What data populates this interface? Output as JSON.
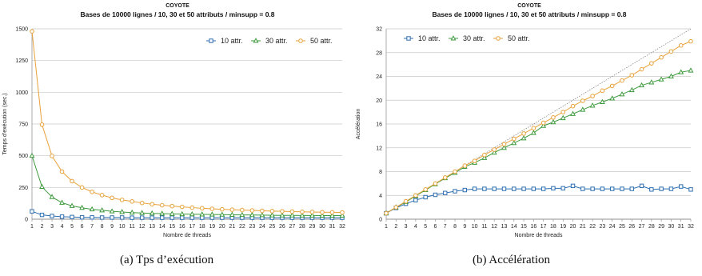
{
  "chart_data": [
    {
      "type": "line",
      "title": "COYOTE",
      "subtitle": "Bases de 10000 lignes / 10, 30 et 50 attributs / minsupp = 0.8",
      "xlabel": "Nombre de threads",
      "ylabel": "Temps d'exécution (sec.)",
      "ylim": [
        0,
        1500
      ],
      "yticks": [
        0,
        250,
        500,
        750,
        1000,
        1250,
        1500
      ],
      "grid": true,
      "legend_position": "top-right",
      "x": [
        1,
        2,
        3,
        4,
        5,
        6,
        7,
        8,
        9,
        10,
        11,
        12,
        13,
        14,
        15,
        16,
        17,
        18,
        19,
        20,
        21,
        22,
        23,
        24,
        25,
        26,
        27,
        28,
        29,
        30,
        31,
        32
      ],
      "series": [
        {
          "name": "10 attr.",
          "color": "#2f6fb0",
          "marker": "square",
          "values": [
            62,
            34,
            25,
            20,
            17,
            15,
            14,
            13,
            13,
            13,
            12,
            12,
            12,
            12,
            12,
            12,
            12,
            12,
            12,
            12,
            12,
            12,
            12,
            12,
            12,
            12,
            12,
            12,
            12,
            12,
            12,
            12
          ]
        },
        {
          "name": "30 attr.",
          "color": "#3f9a3f",
          "marker": "triangle",
          "values": [
            500,
            255,
            175,
            130,
            105,
            90,
            78,
            70,
            62,
            57,
            52,
            49,
            46,
            44,
            42,
            40,
            39,
            38,
            37,
            36,
            35,
            34,
            33,
            32,
            31,
            30,
            30,
            29,
            29,
            28,
            28,
            28
          ]
        },
        {
          "name": "50 attr.",
          "color": "#e8a23a",
          "marker": "circle",
          "values": [
            1480,
            745,
            498,
            375,
            300,
            250,
            215,
            190,
            168,
            152,
            140,
            128,
            118,
            110,
            103,
            97,
            91,
            86,
            82,
            78,
            75,
            72,
            69,
            66,
            64,
            62,
            60,
            58,
            57,
            55,
            54,
            53
          ]
        }
      ]
    },
    {
      "type": "line",
      "title": "COYOTE",
      "subtitle": "Bases de 10000 lignes / 10, 30 et 50 attributs / minsupp = 0.8",
      "xlabel": "Nombre de threads",
      "ylabel": "Accélération",
      "ylim": [
        0,
        32
      ],
      "yticks": [
        0,
        4,
        8,
        12,
        16,
        20,
        24,
        28,
        32
      ],
      "grid": true,
      "legend_position": "top-left",
      "reference_line": "ideal",
      "x": [
        1,
        2,
        3,
        4,
        5,
        6,
        7,
        8,
        9,
        10,
        11,
        12,
        13,
        14,
        15,
        16,
        17,
        18,
        19,
        20,
        21,
        22,
        23,
        24,
        25,
        26,
        27,
        28,
        29,
        30,
        31,
        32
      ],
      "series": [
        {
          "name": "10 attr.",
          "color": "#2f6fb0",
          "marker": "square",
          "values": [
            1,
            1.9,
            2.6,
            3.2,
            3.7,
            4.1,
            4.4,
            4.7,
            4.9,
            5.1,
            5.1,
            5.1,
            5.1,
            5.1,
            5.1,
            5.1,
            5.1,
            5.2,
            5.2,
            5.6,
            5.1,
            5.1,
            5.1,
            5.1,
            5.1,
            5.1,
            5.6,
            5.0,
            5.1,
            5.1,
            5.5,
            5.0
          ]
        },
        {
          "name": "30 attr.",
          "color": "#3f9a3f",
          "marker": "triangle",
          "values": [
            1,
            2,
            2.9,
            3.9,
            4.9,
            5.9,
            6.9,
            7.8,
            8.8,
            9.5,
            10.3,
            11.2,
            12.0,
            12.8,
            13.6,
            14.5,
            15.7,
            16.3,
            17.0,
            17.7,
            18.4,
            19.1,
            19.7,
            20.3,
            21.0,
            21.7,
            22.5,
            23.0,
            23.5,
            24.0,
            24.7,
            25.0
          ]
        },
        {
          "name": "50 attr.",
          "color": "#e8a23a",
          "marker": "circle",
          "values": [
            1,
            2,
            3.0,
            4.0,
            5.0,
            6.0,
            7.0,
            8.0,
            9.0,
            9.8,
            10.8,
            11.7,
            12.6,
            13.5,
            14.4,
            15.3,
            16.2,
            17.1,
            18.0,
            19.0,
            19.9,
            20.7,
            21.6,
            22.4,
            23.3,
            24.2,
            25.2,
            26.2,
            27.2,
            28.2,
            29.2,
            29.9
          ]
        }
      ]
    }
  ],
  "captions": {
    "a": "(a)  Tps d’exécution",
    "b": "(b)  Accélération"
  }
}
